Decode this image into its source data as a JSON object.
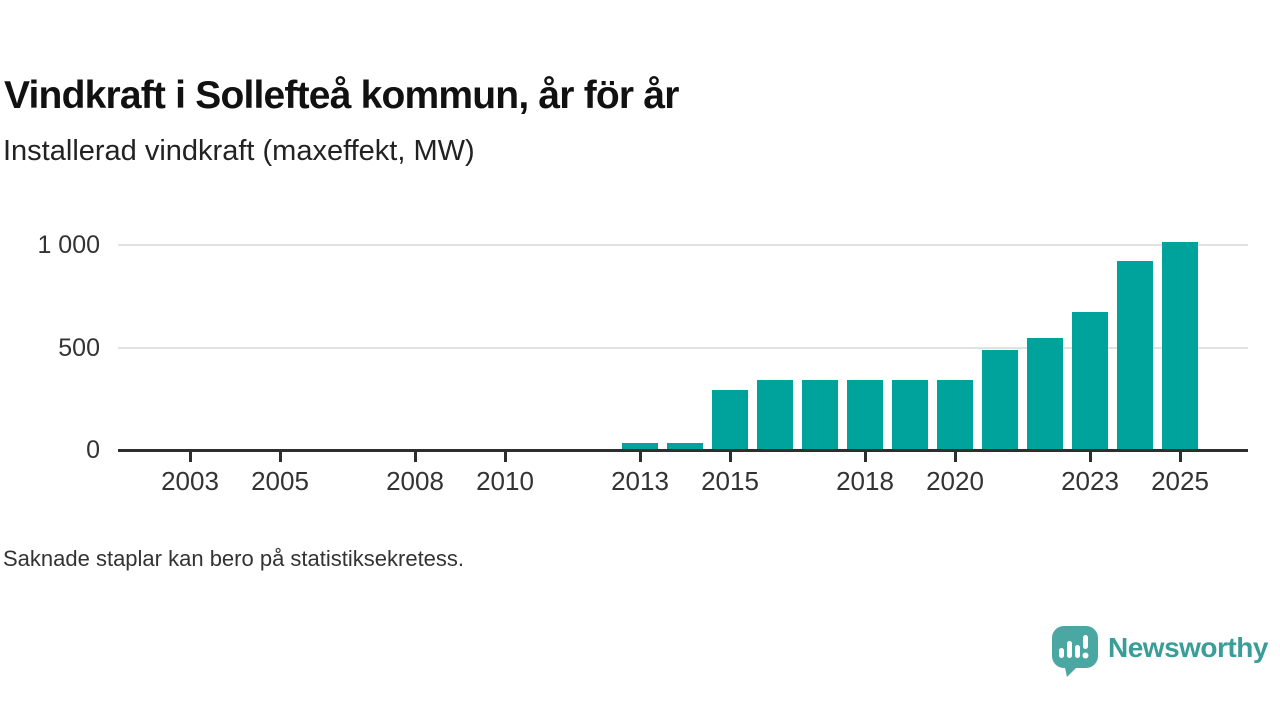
{
  "header": {
    "title": "Vindkraft i Sollefteå kommun, år för år",
    "subtitle": "Installerad vindkraft (maxeffekt, MW)"
  },
  "footer": {
    "note": "Saknade staplar kan bero på statistiksekretess.",
    "brand_name": "Newsworthy",
    "brand_icon": "newsworthy-speech-bubble-bar-chart-icon"
  },
  "colors": {
    "bar": "#00a39b",
    "axis": "#2e2e2e",
    "gridline": "#e2e2e2",
    "tick_text": "#333333",
    "brand_teal": "#4ba7a1",
    "brand_text": "#3b9d97",
    "background": "#ffffff"
  },
  "chart_data": {
    "type": "bar",
    "title": "Vindkraft i Sollefteå kommun, år för år",
    "ylabel_unit": "Installerad vindkraft (maxeffekt, MW)",
    "grid": "horizontal",
    "legend": "none",
    "years": [
      2002,
      2003,
      2004,
      2005,
      2006,
      2007,
      2008,
      2009,
      2010,
      2011,
      2012,
      2013,
      2014,
      2015,
      2016,
      2017,
      2018,
      2019,
      2020,
      2021,
      2022,
      2023,
      2024,
      2025
    ],
    "values": [
      null,
      null,
      null,
      null,
      null,
      null,
      null,
      null,
      null,
      null,
      null,
      35,
      35,
      295,
      340,
      340,
      340,
      340,
      340,
      490,
      545,
      675,
      920,
      1015
    ],
    "missing_values_note": "Saknade staplar kan bero på statistiksekretess.",
    "x_ticks": [
      2003,
      2005,
      2008,
      2010,
      2013,
      2015,
      2018,
      2020,
      2023,
      2025
    ],
    "y_ticks": [
      {
        "value": 0,
        "label": "0"
      },
      {
        "value": 500,
        "label": "500"
      },
      {
        "value": 1000,
        "label": "1 000"
      }
    ],
    "ylim": [
      0,
      1025
    ]
  }
}
